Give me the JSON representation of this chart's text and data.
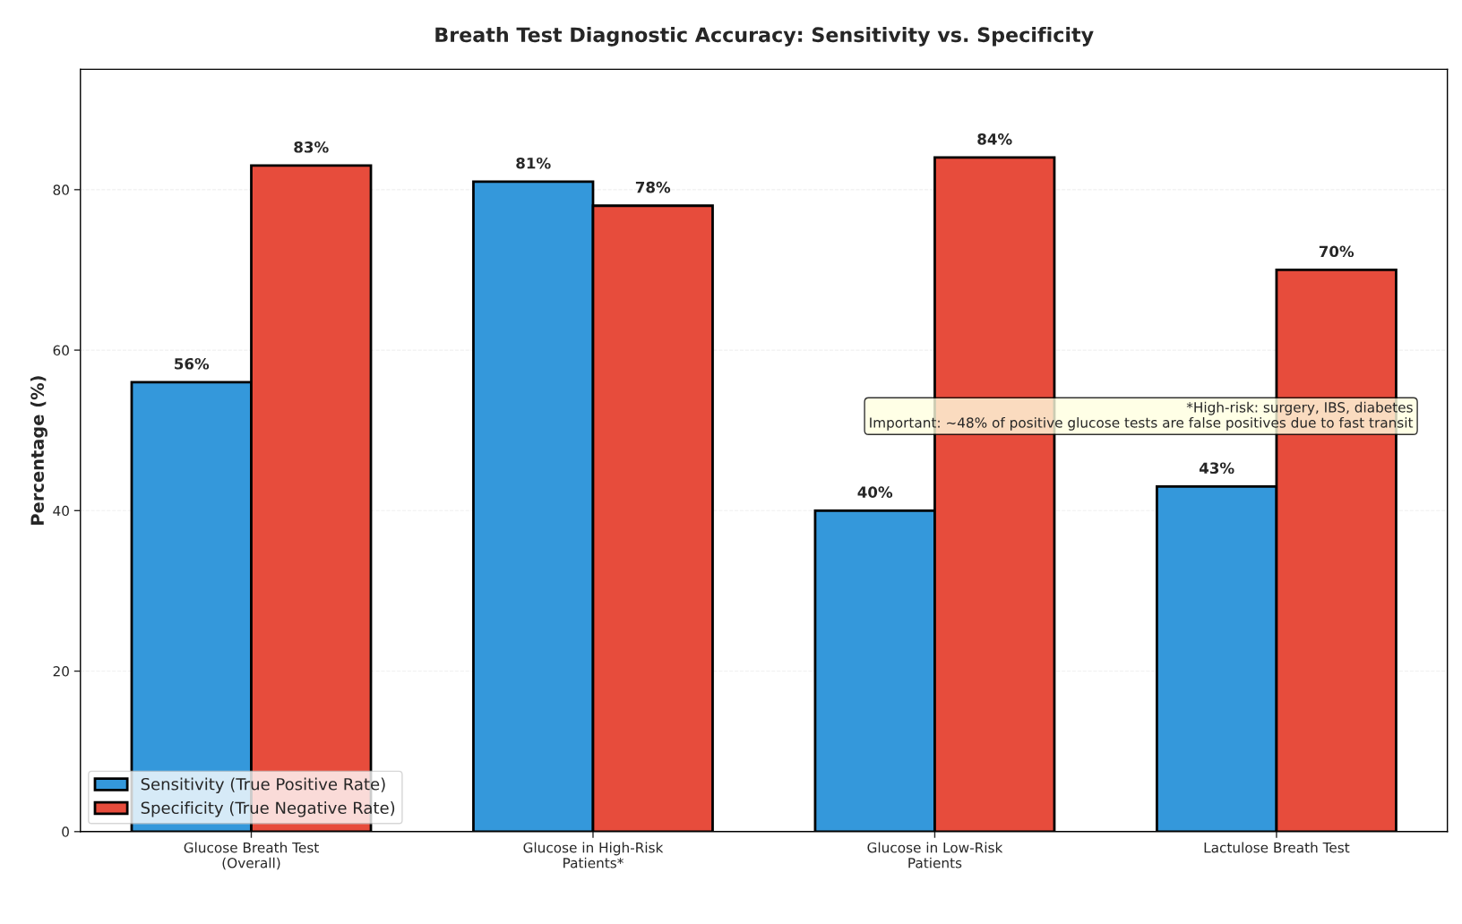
{
  "chart_data": {
    "type": "bar",
    "title": "Breath Test Diagnostic Accuracy: Sensitivity vs. Specificity",
    "ylabel": "Percentage (%)",
    "categories": [
      "Glucose Breath Test\n(Overall)",
      "Glucose in High-Risk\nPatients*",
      "Glucose in Low-Risk\nPatients",
      "Lactulose Breath Test"
    ],
    "series": [
      {
        "name": "Sensitivity (True Positive Rate)",
        "color": "#3498db",
        "values": [
          56,
          81,
          40,
          43
        ],
        "value_labels": [
          "56%",
          "81%",
          "40%",
          "43%"
        ]
      },
      {
        "name": "Specificity (True Negative Rate)",
        "color": "#e74c3c",
        "values": [
          83,
          78,
          84,
          70
        ],
        "value_labels": [
          "83%",
          "78%",
          "84%",
          "70%"
        ]
      }
    ],
    "ylim": [
      0,
      95
    ],
    "yticks": [
      0,
      20,
      40,
      60,
      80
    ],
    "grid": "y",
    "legend": "bottom left",
    "annotations": [
      "*High-risk: surgery, IBS, diabetes\nImportant: ~48% of positive glucose tests are false positives due to fast transit"
    ]
  }
}
